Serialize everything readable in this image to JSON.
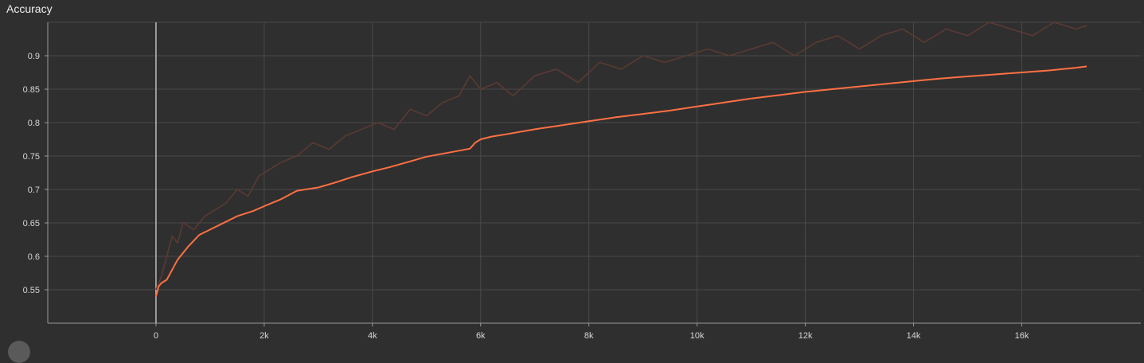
{
  "chart_data": {
    "type": "line",
    "title": "Accuracy",
    "xlabel": "",
    "ylabel": "",
    "xlim": [
      -2000,
      18200
    ],
    "ylim": [
      0.5,
      0.95
    ],
    "x_ticks": [
      0,
      2000,
      4000,
      6000,
      8000,
      10000,
      12000,
      14000,
      16000
    ],
    "x_tick_labels": [
      "0",
      "2k",
      "4k",
      "6k",
      "8k",
      "10k",
      "12k",
      "14k",
      "16k"
    ],
    "y_ticks": [
      0.55,
      0.6,
      0.65,
      0.7,
      0.75,
      0.8,
      0.85,
      0.9
    ],
    "y_tick_labels": [
      "0.55",
      "0.6",
      "0.65",
      "0.7",
      "0.75",
      "0.8",
      "0.85",
      "0.9"
    ],
    "grid": true,
    "colors": {
      "background": "#2f2f2f",
      "grid": "#4a4a4a",
      "axis": "#9a9a9a",
      "smoothed": "#ff7043",
      "raw": "#5b3a33"
    },
    "series": [
      {
        "x": [
          0,
          50,
          100,
          200,
          300,
          400,
          500,
          600,
          800,
          1000,
          1200,
          1500,
          1800,
          2000,
          2300,
          2600,
          3000,
          3300,
          3600,
          4000,
          4300,
          4700,
          5000,
          5400,
          5800,
          5900,
          6000,
          6200,
          6500,
          7000,
          7500,
          8000,
          8500,
          9000,
          9500,
          10000,
          10500,
          11000,
          11500,
          12000,
          12500,
          13000,
          13500,
          14000,
          14500,
          15000,
          15500,
          16000,
          16500,
          17000,
          17200
        ],
        "values": [
          0.54,
          0.555,
          0.56,
          0.565,
          0.58,
          0.595,
          0.605,
          0.615,
          0.632,
          0.64,
          0.648,
          0.66,
          0.668,
          0.675,
          0.685,
          0.698,
          0.703,
          0.71,
          0.718,
          0.727,
          0.733,
          0.742,
          0.749,
          0.755,
          0.761,
          0.77,
          0.775,
          0.779,
          0.783,
          0.79,
          0.796,
          0.802,
          0.808,
          0.813,
          0.818,
          0.824,
          0.83,
          0.836,
          0.841,
          0.846,
          0.85,
          0.854,
          0.858,
          0.862,
          0.866,
          0.869,
          0.872,
          0.875,
          0.878,
          0.882,
          0.884
        ]
      },
      {
        "x": [
          0,
          100,
          200,
          300,
          400,
          500,
          700,
          900,
          1100,
          1300,
          1500,
          1700,
          1900,
          2100,
          2300,
          2600,
          2900,
          3200,
          3500,
          3800,
          4100,
          4400,
          4700,
          5000,
          5300,
          5600,
          5800,
          6000,
          6300,
          6600,
          7000,
          7400,
          7800,
          8200,
          8600,
          9000,
          9400,
          9800,
          10200,
          10600,
          11000,
          11400,
          11800,
          12200,
          12600,
          13000,
          13400,
          13800,
          14200,
          14600,
          15000,
          15400,
          15800,
          16200,
          16600,
          17000,
          17200
        ],
        "values": [
          0.55,
          0.57,
          0.6,
          0.63,
          0.62,
          0.65,
          0.64,
          0.66,
          0.67,
          0.68,
          0.7,
          0.69,
          0.72,
          0.73,
          0.74,
          0.75,
          0.77,
          0.76,
          0.78,
          0.79,
          0.8,
          0.79,
          0.82,
          0.81,
          0.83,
          0.84,
          0.87,
          0.85,
          0.86,
          0.84,
          0.87,
          0.88,
          0.86,
          0.89,
          0.88,
          0.9,
          0.89,
          0.9,
          0.91,
          0.9,
          0.91,
          0.92,
          0.9,
          0.92,
          0.93,
          0.91,
          0.93,
          0.94,
          0.92,
          0.94,
          0.93,
          0.95,
          0.94,
          0.93,
          0.95,
          0.94,
          0.945
        ]
      }
    ]
  }
}
